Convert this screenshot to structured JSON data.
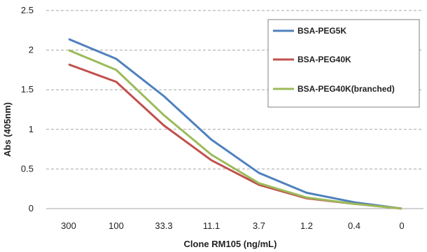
{
  "chart_data": {
    "type": "line",
    "title": "",
    "xlabel": "Clone RM105 (ng/mL)",
    "ylabel": "Abs (405nm)",
    "categories": [
      "300",
      "100",
      "33.3",
      "11.1",
      "3.7",
      "1.2",
      "0.4",
      "0"
    ],
    "ylim": [
      0,
      2.5
    ],
    "yticks": [
      "0",
      "0.5",
      "1",
      "1.5",
      "2",
      "2.5"
    ],
    "grid": "horizontal dashed",
    "legend_position": "top-right",
    "series": [
      {
        "name": "BSA-PEG5K",
        "color": "#4f81bd",
        "values": [
          2.14,
          1.89,
          1.42,
          0.87,
          0.45,
          0.2,
          0.08,
          0.0
        ]
      },
      {
        "name": "BSA-PEG40K",
        "color": "#c0504d",
        "values": [
          1.82,
          1.6,
          1.05,
          0.61,
          0.3,
          0.13,
          0.06,
          0.0
        ]
      },
      {
        "name": "BSA-PEG40K(branched)",
        "color": "#9bbb59",
        "values": [
          2.0,
          1.75,
          1.18,
          0.68,
          0.32,
          0.14,
          0.06,
          0.0
        ]
      }
    ]
  }
}
